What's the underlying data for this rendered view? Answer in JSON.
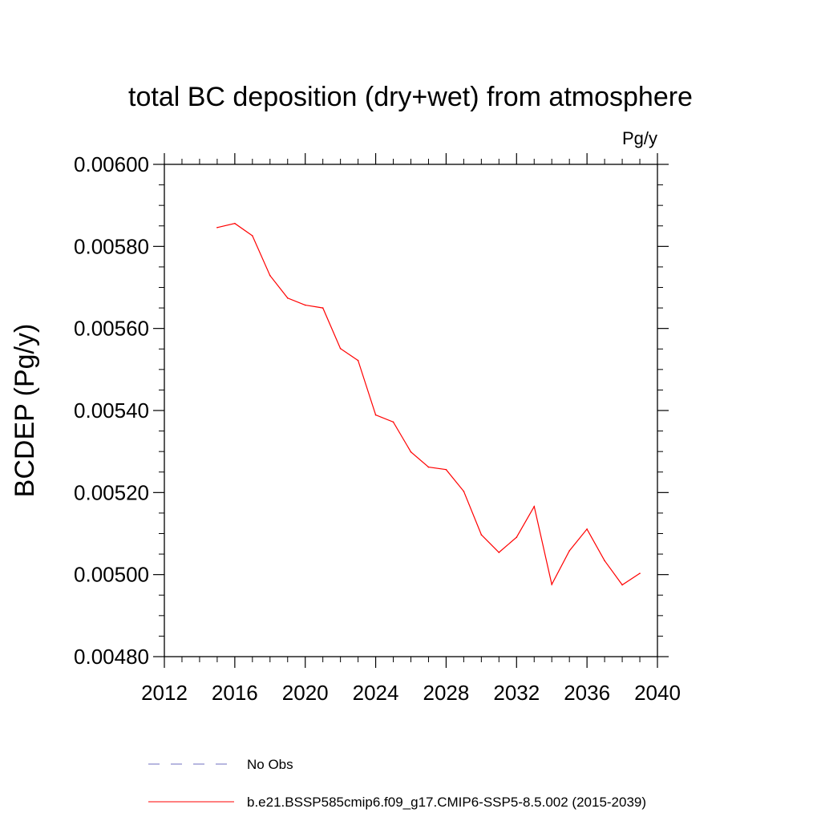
{
  "chart_data": {
    "type": "line",
    "title": "total BC deposition (dry+wet) from atmosphere",
    "units": "Pg/y",
    "ylabel": "BCDEP  (Pg/y)",
    "xlabel": "",
    "xlim": [
      2012,
      2040
    ],
    "ylim": [
      0.0048,
      0.006
    ],
    "x_ticks": [
      2012,
      2016,
      2020,
      2024,
      2028,
      2032,
      2036,
      2040
    ],
    "y_ticks": [
      "0.00480",
      "0.00500",
      "0.00520",
      "0.00540",
      "0.00560",
      "0.00580",
      "0.00600"
    ],
    "y_tick_values": [
      0.0048,
      0.005,
      0.0052,
      0.0054,
      0.0056,
      0.0058,
      0.006
    ],
    "grid": false,
    "legend_placement": "bottom",
    "series": [
      {
        "name": "b.e21.BSSP585cmip6.f09_g17.CMIP6-SSP5-8.5.002 (2015-2039)",
        "color": "#ff0000",
        "style": "solid",
        "x": [
          2015,
          2016,
          2017,
          2018,
          2019,
          2020,
          2021,
          2022,
          2023,
          2024,
          2025,
          2026,
          2027,
          2028,
          2029,
          2030,
          2031,
          2032,
          2033,
          2034,
          2035,
          2036,
          2037,
          2038,
          2039
        ],
        "values": [
          0.005846,
          0.005856,
          0.005826,
          0.005729,
          0.005674,
          0.005657,
          0.00565,
          0.005551,
          0.005522,
          0.005389,
          0.005372,
          0.005299,
          0.005262,
          0.005256,
          0.005203,
          0.005097,
          0.005054,
          0.005091,
          0.005166,
          0.004976,
          0.005058,
          0.005111,
          0.005034,
          0.004975,
          0.005003
        ]
      }
    ],
    "legend": [
      {
        "label": "No Obs",
        "color": "#6f6fc0",
        "style": "dashed"
      },
      {
        "label": "b.e21.BSSP585cmip6.f09_g17.CMIP6-SSP5-8.5.002 (2015-2039)",
        "color": "#ff0000",
        "style": "solid"
      }
    ]
  }
}
